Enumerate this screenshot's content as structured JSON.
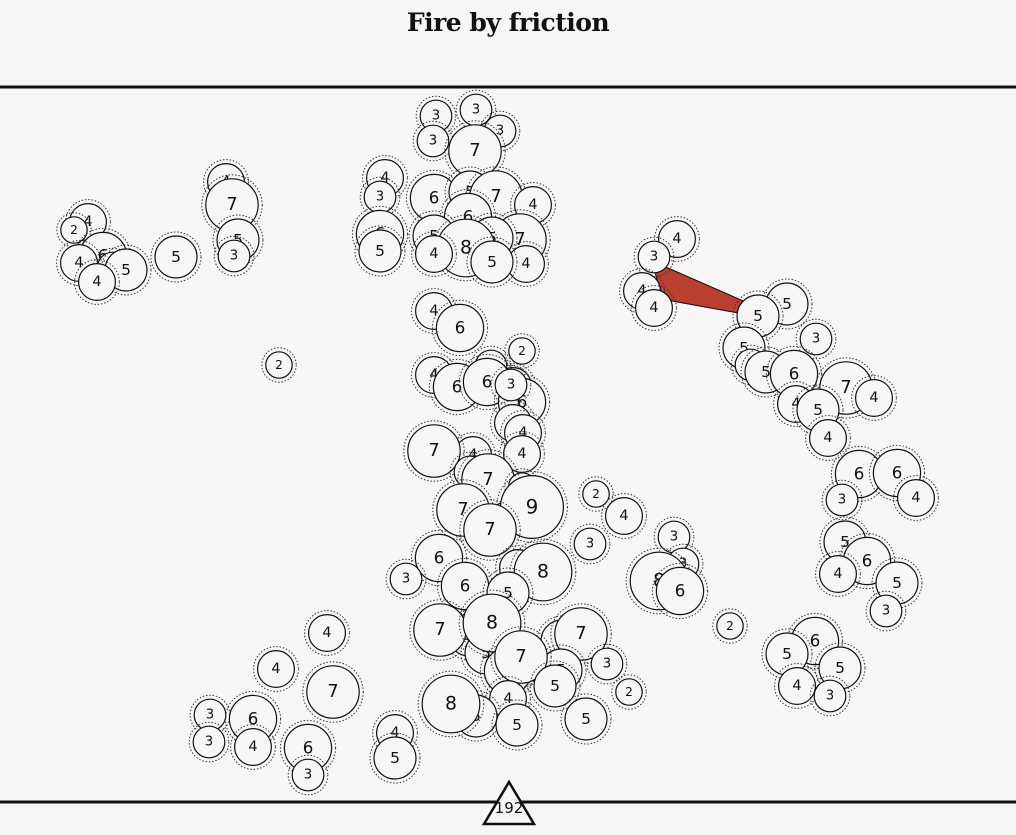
{
  "title": "Fire by friction",
  "counter": {
    "value": "192"
  },
  "colors": {
    "background": "#f7f5f6",
    "line": "#111111",
    "highlight": "#b94030",
    "node_fill": "#f7f5f6"
  },
  "nodes": [
    {
      "v": 3
    },
    {
      "v": 3
    },
    {
      "v": 3
    },
    {
      "v": 3
    },
    {
      "v": 7
    },
    {
      "v": 4
    },
    {
      "v": 3
    },
    {
      "v": 6
    },
    {
      "v": 5
    },
    {
      "v": 7
    },
    {
      "v": 4
    },
    {
      "v": 6
    },
    {
      "v": 6
    },
    {
      "v": 5
    },
    {
      "v": 7
    },
    {
      "v": 5
    },
    {
      "v": 8
    },
    {
      "v": 4
    },
    {
      "v": 5
    },
    {
      "v": 4
    },
    {
      "v": 5
    },
    {
      "v": 4
    },
    {
      "v": 6
    },
    {
      "v": 4
    },
    {
      "v": 7
    },
    {
      "v": 5
    },
    {
      "v": 3
    },
    {
      "v": 4
    },
    {
      "v": 2
    },
    {
      "v": 6
    },
    {
      "v": 4
    },
    {
      "v": 3
    },
    {
      "v": 5
    },
    {
      "v": 4
    },
    {
      "v": 5
    },
    {
      "v": 2
    },
    {
      "v": 4
    },
    {
      "v": 3
    },
    {
      "v": 4
    },
    {
      "v": 4
    },
    {
      "v": 5
    },
    {
      "v": 5
    },
    {
      "v": 3
    },
    {
      "v": 5
    },
    {
      "v": 3
    },
    {
      "v": 5
    },
    {
      "v": 6
    },
    {
      "v": 7
    },
    {
      "v": 4
    },
    {
      "v": 4
    },
    {
      "v": 5
    },
    {
      "v": 4
    },
    {
      "v": 6
    },
    {
      "v": 6
    },
    {
      "v": 3
    },
    {
      "v": 4
    },
    {
      "v": 5
    },
    {
      "v": 6
    },
    {
      "v": 4
    },
    {
      "v": 5
    },
    {
      "v": 3
    },
    {
      "v": 4
    },
    {
      "v": 6
    },
    {
      "v": 2
    },
    {
      "v": 3
    },
    {
      "v": 4
    },
    {
      "v": 6
    },
    {
      "v": 6
    },
    {
      "v": 3
    },
    {
      "v": 4
    },
    {
      "v": 4
    },
    {
      "v": 4
    },
    {
      "v": 7
    },
    {
      "v": 4
    },
    {
      "v": 4
    },
    {
      "v": 3
    },
    {
      "v": 7
    },
    {
      "v": 2
    },
    {
      "v": 9
    },
    {
      "v": 7
    },
    {
      "v": 7
    },
    {
      "v": 2
    },
    {
      "v": 4
    },
    {
      "v": 3
    },
    {
      "v": 3
    },
    {
      "v": 3
    },
    {
      "v": 8
    },
    {
      "v": 6
    },
    {
      "v": 2
    },
    {
      "v": 6
    },
    {
      "v": 3
    },
    {
      "v": 6
    },
    {
      "v": 4
    },
    {
      "v": 8
    },
    {
      "v": 5
    },
    {
      "v": 5
    },
    {
      "v": 7
    },
    {
      "v": 5
    },
    {
      "v": 8
    },
    {
      "v": 5
    },
    {
      "v": 7
    },
    {
      "v": 6
    },
    {
      "v": 2
    },
    {
      "v": 5
    },
    {
      "v": 7
    },
    {
      "v": 5
    },
    {
      "v": 3
    },
    {
      "v": 2
    },
    {
      "v": 4
    },
    {
      "v": 5
    },
    {
      "v": 8
    },
    {
      "v": 5
    },
    {
      "v": 5
    },
    {
      "v": 6
    },
    {
      "v": 5
    },
    {
      "v": 5
    },
    {
      "v": 4
    },
    {
      "v": 3
    },
    {
      "v": 4
    },
    {
      "v": 4
    },
    {
      "v": 7
    },
    {
      "v": 3
    },
    {
      "v": 6
    },
    {
      "v": 3
    },
    {
      "v": 4
    },
    {
      "v": 6
    },
    {
      "v": 3
    },
    {
      "v": 4
    },
    {
      "v": 5
    }
  ]
}
